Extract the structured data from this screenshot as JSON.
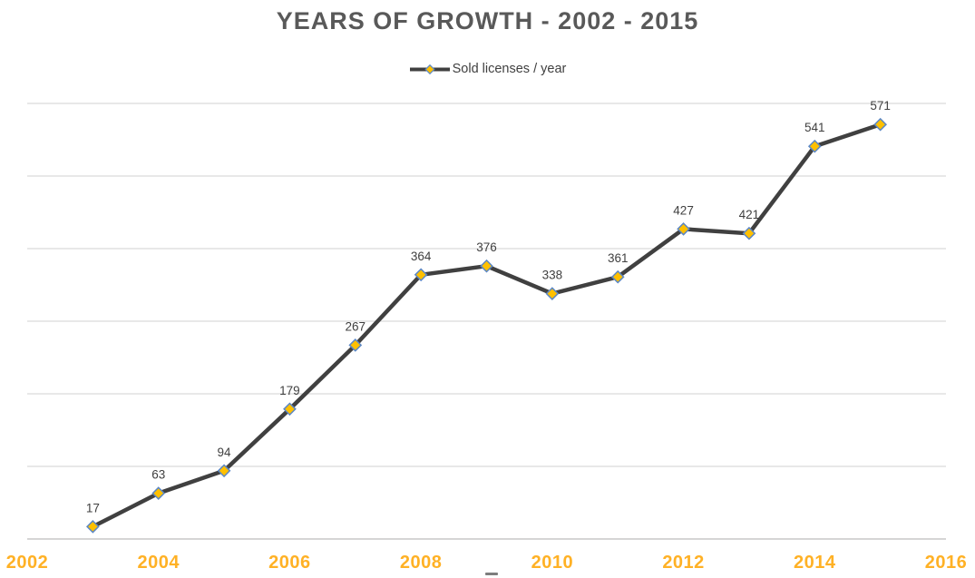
{
  "header": {
    "title": "YEARS OF GROWTH - 2002 - 2015"
  },
  "legend": {
    "label": "Sold licenses / year",
    "marker_icon": "line-diamond-icon"
  },
  "colors": {
    "title_text": "#595959",
    "series_line": "#404040",
    "marker_fill": "#FFC000",
    "marker_stroke": "#5B87C5",
    "gridline": "#D9D9D9",
    "axis_line": "#C9C7C7",
    "x_tick_label": "#FFB125",
    "data_label": "#404040",
    "legend_text": "#404040"
  },
  "chart_data": {
    "type": "line",
    "title": "YEARS OF GROWTH - 2002 - 2015",
    "legend_position": "top",
    "x": [
      2003,
      2004,
      2005,
      2006,
      2007,
      2008,
      2009,
      2010,
      2011,
      2012,
      2013,
      2014,
      2015
    ],
    "series": [
      {
        "name": "Sold licenses / year",
        "values": [
          17,
          63,
          94,
          179,
          267,
          364,
          376,
          338,
          361,
          427,
          421,
          541,
          571
        ]
      }
    ],
    "data_labels_visible": true,
    "marker_shape": "diamond",
    "xlabel": "",
    "ylabel": "",
    "xlim": [
      2002,
      2016
    ],
    "ylim": [
      0,
      600
    ],
    "y_gridline_step": 100,
    "grid": "horizontal",
    "y_axis_labels_visible": false,
    "x_tick_labels": [
      "2002",
      "2004",
      "2006",
      "2008",
      "2010",
      "2012",
      "2014",
      "2016"
    ],
    "x_tick_values": [
      2002,
      2004,
      2006,
      2008,
      2010,
      2012,
      2014,
      2016
    ]
  }
}
